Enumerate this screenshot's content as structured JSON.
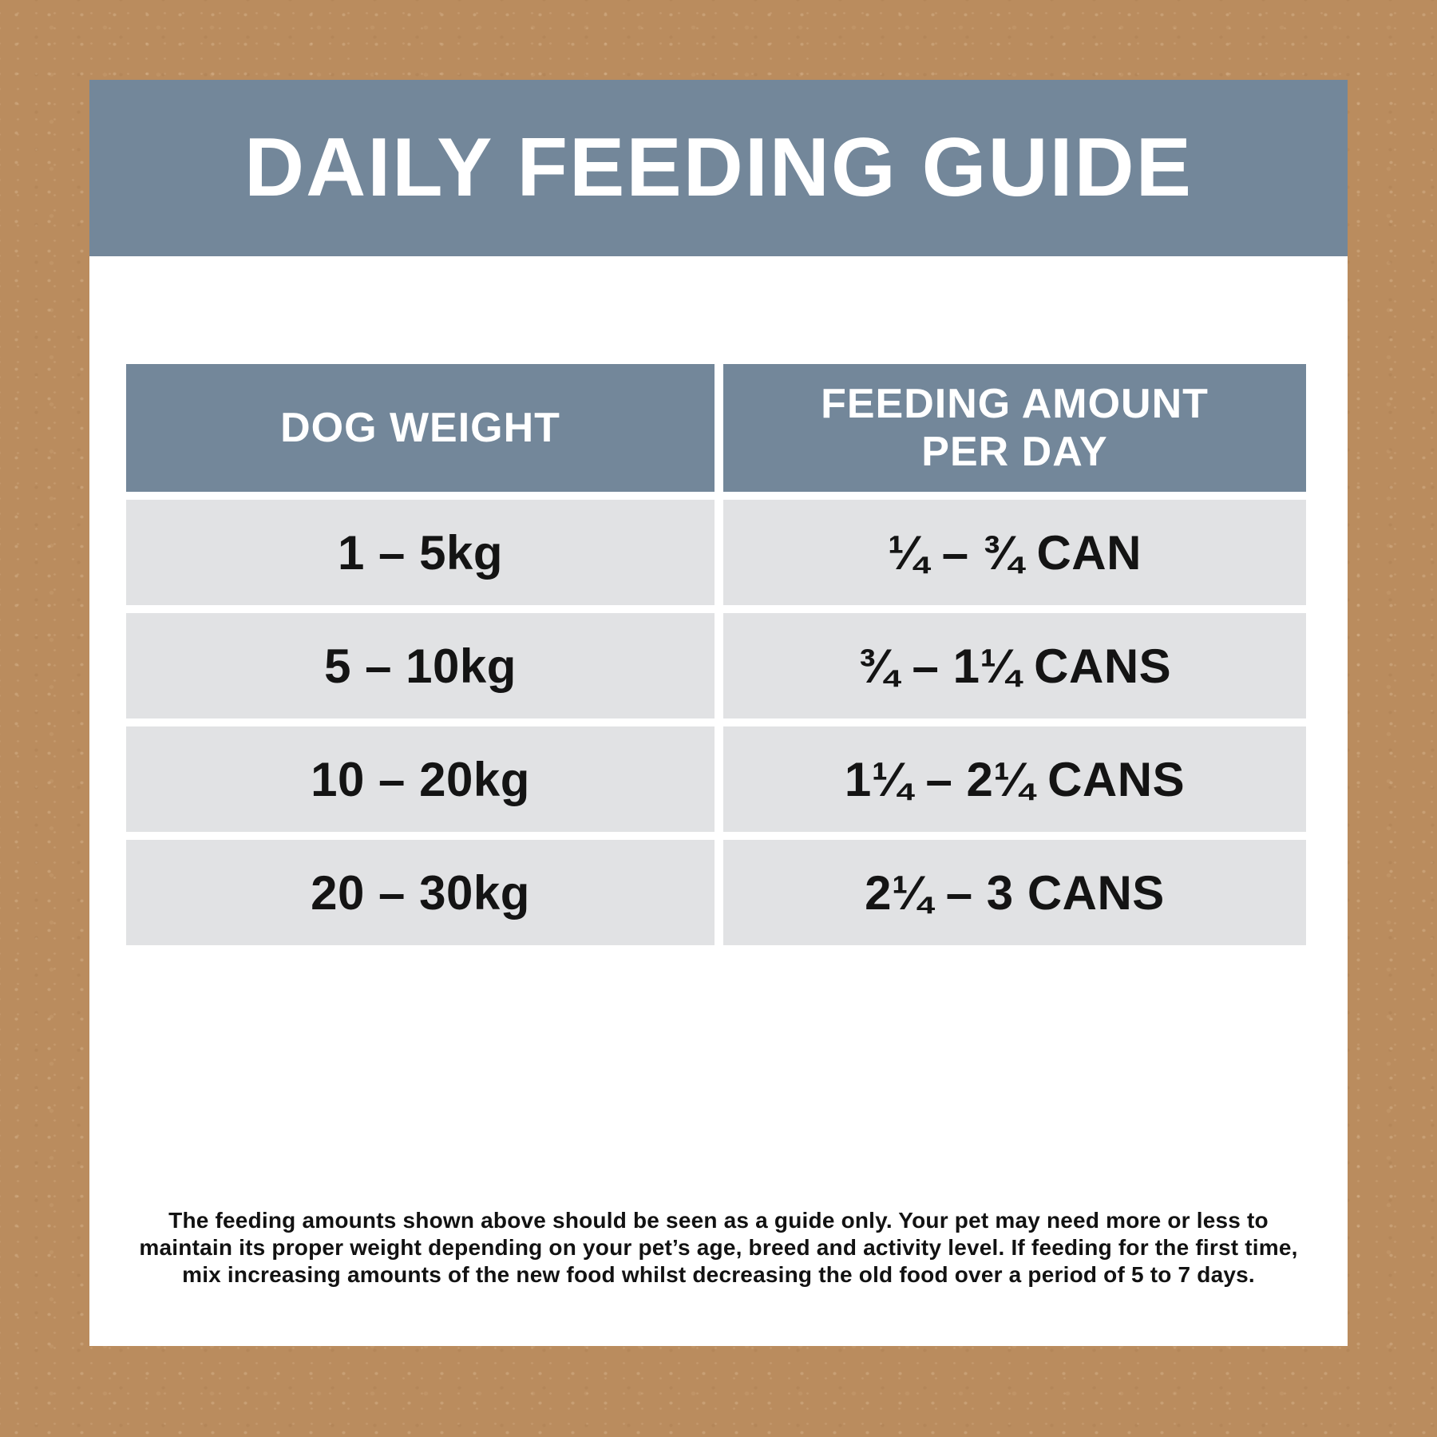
{
  "title": "DAILY FEEDING GUIDE",
  "colors": {
    "background_brown": "#ba8c5e",
    "panel_white": "#ffffff",
    "header_slate": "#73879a",
    "row_gray": "#e1e2e4",
    "text_dark": "#141414",
    "text_light": "#ffffff"
  },
  "table": {
    "col1_header": "DOG WEIGHT",
    "col2_header_line1": "FEEDING AMOUNT",
    "col2_header_line2": "PER DAY",
    "rows": [
      {
        "weight": "1 – 5kg",
        "amount": "¼ – ¾ CAN"
      },
      {
        "weight": "5 – 10kg",
        "amount": "¾ – 1¼ CANS"
      },
      {
        "weight": "10 – 20kg",
        "amount": "1¼ – 2¼ CANS"
      },
      {
        "weight": "20 – 30kg",
        "amount": "2¼ – 3 CANS"
      }
    ]
  },
  "footnote": {
    "lines": [
      "The feeding amounts shown above should be seen as a guide only. Your pet may need more or less to",
      "maintain its proper weight depending on your pet’s age, breed and activity level. If feeding for the first time,",
      "mix increasing amounts of the new food whilst decreasing the old food over a period of 5 to 7 days."
    ]
  }
}
